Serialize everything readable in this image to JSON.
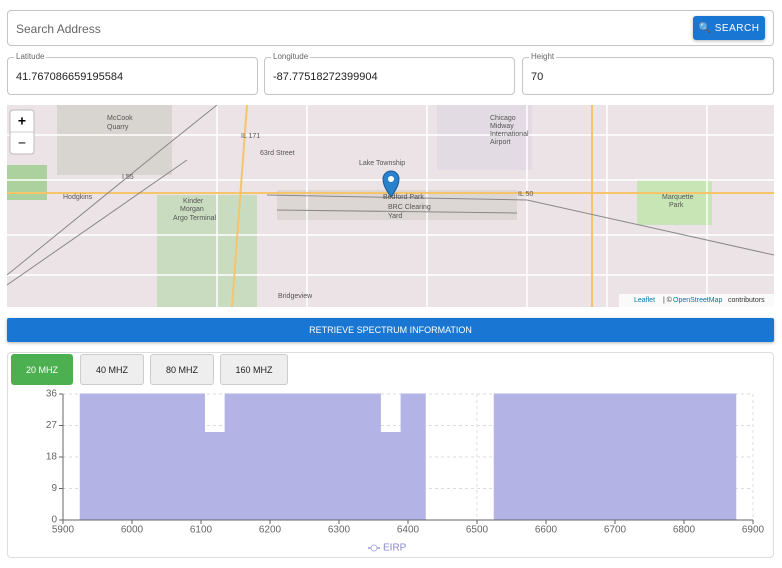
{
  "search": {
    "placeholder": "Search Address",
    "button": "SEARCH"
  },
  "fields": [
    {
      "label": "Latitude",
      "value": "41.767086659195584"
    },
    {
      "label": "Longitude",
      "value": "-87.77518272399904"
    },
    {
      "label": "Height",
      "value": "70"
    }
  ],
  "map": {
    "zoom_in": "+",
    "zoom_out": "−",
    "labels": [
      "McCook",
      "Quarry",
      "Hodgkins",
      "IL 171",
      "63rd Street",
      "I 55",
      "Lake Township",
      "Bedford Park",
      "BRC Clearing",
      "Yard",
      "IL 50",
      "Chicago",
      "Midway",
      "International",
      "Airport",
      "Marquette",
      "Park",
      "Kinder",
      "Morgan",
      "Argo Terminal",
      "Bridgeview"
    ],
    "attribution": {
      "leaflet": "Leaflet",
      "separator": "| ©",
      "osm": "OpenStreetMap",
      "suffix": "contributors"
    }
  },
  "retrieve_button": "RETRIEVE SPECTRUM INFORMATION",
  "tabs": [
    "20 MHZ",
    "40 MHZ",
    "80 MHZ",
    "160 MHZ"
  ],
  "active_tab": 0,
  "chart_data": {
    "type": "area",
    "x": [
      5925,
      5925,
      6105,
      6105,
      6135,
      6135,
      6360,
      6360,
      6390,
      6390,
      6425,
      6425,
      6525,
      6525,
      6875,
      6875
    ],
    "series": [
      {
        "name": "EIRP",
        "color": "#b3b3e6",
        "values": [
          0,
          36,
          36,
          25,
          25,
          36,
          36,
          25,
          25,
          36,
          36,
          0,
          0,
          36,
          36,
          0
        ]
      }
    ],
    "xlim": [
      5900,
      6900
    ],
    "xticks": [
      5900,
      6000,
      6100,
      6200,
      6300,
      6400,
      6500,
      6600,
      6700,
      6800,
      6900
    ],
    "ylim": [
      0,
      36
    ],
    "yticks": [
      0,
      9,
      18,
      27,
      36
    ],
    "grid": true
  }
}
